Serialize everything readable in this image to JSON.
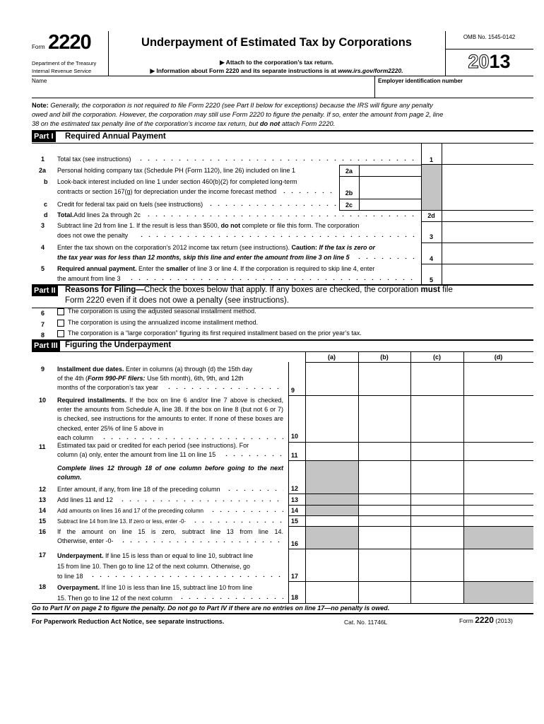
{
  "header": {
    "form_word": "Form",
    "form_number": "2220",
    "dept_line1": "Department of the Treasury",
    "dept_line2": "Internal Revenue Service",
    "title": "Underpayment of Estimated Tax by Corporations",
    "attach": "▶ Attach to the corporation’s tax return.",
    "info_prefix": "▶ Information about Form 2220 and its separate instructions is at ",
    "info_url": "www.irs.gov/form2220.",
    "omb": "OMB No. 1545-0142",
    "year_outline": "20",
    "year_bold": "13"
  },
  "id_row": {
    "name_label": "Name",
    "ein_label": "Employer identification number",
    "name_value": "",
    "ein_value": ""
  },
  "note": {
    "label": "Note:",
    "text1": " Generally, the corporation is not required to file Form 2220 (see Part II below for exceptions) because the IRS will figure any penalty",
    "text2": "owed and bill the corporation. However, the corporation may still use Form 2220 to figure the penalty. If so, enter the amount from page 2, line",
    "text3": "38 on the estimated tax penalty line of the corporation’s income tax return, but ",
    "donot": "do not",
    "text4": " attach Form 2220."
  },
  "part1": {
    "tag": "Part I",
    "title": "Required Annual Payment",
    "l1": {
      "num": "1",
      "text": "Total tax (see instructions)",
      "box": "1"
    },
    "l2a": {
      "num": "2a",
      "text": "Personal holding company tax (Schedule PH (Form 1120), line 26) included on line 1",
      "box": "2a"
    },
    "l2b": {
      "num": "b",
      "text1": "Look-back interest included on line 1 under section 460(b)(2) for completed long-term",
      "text2": "contracts or section 167(g) for depreciation under the income forecast method",
      "box": "2b"
    },
    "l2c": {
      "num": "c",
      "text": "Credit for federal tax paid on fuels (see instructions)",
      "box": "2c"
    },
    "l2d": {
      "num": "d",
      "bold": "Total.",
      "text": " Add lines 2a through 2c",
      "box": "2d"
    },
    "l3": {
      "num": "3",
      "text1a": "Subtract line 2d from line 1. If the result is less than $500, ",
      "text1b": "do not",
      "text1c": " complete or file this form. The corporation",
      "text2": "does not owe the penalty",
      "box": "3"
    },
    "l4": {
      "num": "4",
      "text1a": "Enter the tax shown on the corporation’s 2012 income tax return (see instructions). ",
      "text1b": "Caution:",
      "text1c": " If the tax is zero or",
      "text2": "the tax year was for less than 12 months, skip this line and enter the amount from line 3 on line 5",
      "box": "4"
    },
    "l5": {
      "num": "5",
      "text1a": "Required annual payment.",
      "text1b": " Enter the ",
      "text1c": "smaller",
      "text1d": " of line 3 or line 4. If the corporation is required to skip line 4, enter",
      "text2": "the amount from line 3",
      "box": "5"
    }
  },
  "part2": {
    "tag": "Part II",
    "title_bold": "Reasons for Filing—",
    "title_rest": "Check the boxes below that apply. If any boxes are checked, the corporation ",
    "must": "must",
    "file": " file",
    "title_line2": "Form 2220 even if it does not owe a penalty (see instructions).",
    "items": [
      {
        "num": "6",
        "text": "The corporation is using the adjusted seasonal installment method.",
        "checked": false
      },
      {
        "num": "7",
        "text": "The corporation is using the annualized income installment method.",
        "checked": false
      },
      {
        "num": "8",
        "text": "The corporation is a “large corporation” figuring its first required installment based on the prior year’s tax.",
        "checked": false
      }
    ]
  },
  "part3": {
    "tag": "Part III",
    "title": "Figuring the Underpayment",
    "columns": [
      "(a)",
      "(b)",
      "(c)",
      "(d)"
    ],
    "l9": {
      "num": "9",
      "bold": "Installment due dates.",
      "t1": " Enter in columns (a) through (d) the 15th  day",
      "t2a": "of the 4th (",
      "t2b": "Form 990-PF filers:",
      "t2c": " Use 5th month), 6th, 9th, and  12th",
      "t3": "months of the corporation’s tax year",
      "box": "9"
    },
    "l10": {
      "num": "10",
      "bold": "Required installments.",
      "t1": " If the box on line 6 and/or line 7 above  is checked, enter the amounts from Schedule A, line 38. If the box on line 8 (but not 6 or 7) is checked, see instructions for the  amounts to enter. If none of these boxes are checked, enter 25% of line 5 above in",
      "t2": "each column",
      "box": "10"
    },
    "l11": {
      "num": "11",
      "t1": "Estimated tax paid or credited for each period (see instructions). For",
      "t2": "column (a) only, enter the amount from line 11 on line 15",
      "box": "11"
    },
    "instruction": "Complete lines 12 through 18 of one column before going to the next column.",
    "l12": {
      "num": "12",
      "t": "Enter amount, if any, from line 18 of the preceding column",
      "box": "12"
    },
    "l13": {
      "num": "13",
      "t": "Add lines 11 and 12",
      "box": "13"
    },
    "l14": {
      "num": "14",
      "t": "Add amounts on lines 16 and 17 of the preceding column",
      "box": "14"
    },
    "l15": {
      "num": "15",
      "t": "Subtract line 14 from line 13. If zero or less, enter -0-",
      "box": "15"
    },
    "l16": {
      "num": "16",
      "t1": "If the amount on line 15 is zero, subtract line 13 from line 14.",
      "t2": "Otherwise, enter -0-",
      "box": "16"
    },
    "l17": {
      "num": "17",
      "bold": "Underpayment.",
      "t1": " If line 15 is less than or equal to line 10, subtract  line",
      "t2": "15 from line 10. Then go to line 12 of the next column. Otherwise, go",
      "t3": "to line 18",
      "box": "17"
    },
    "l18": {
      "num": "18",
      "bold": "Overpayment.",
      "t1": " If line 10 is less than line 15, subtract line 10 from line",
      "t2": "15. Then go to line 12 of the next column",
      "box": "18"
    },
    "closing": "Go to Part IV on page 2 to figure the penalty. Do not go to Part IV if there are no entries on line 17—no penalty is owed."
  },
  "footer": {
    "paperwork": "For Paperwork Reduction Act Notice, see separate instructions.",
    "cat": "Cat. No. 11746L",
    "form_word": "Form ",
    "form_number": "2220",
    "year": " (2013)"
  },
  "colors": {
    "shade": "#c4c4c4",
    "ink": "#000000"
  }
}
